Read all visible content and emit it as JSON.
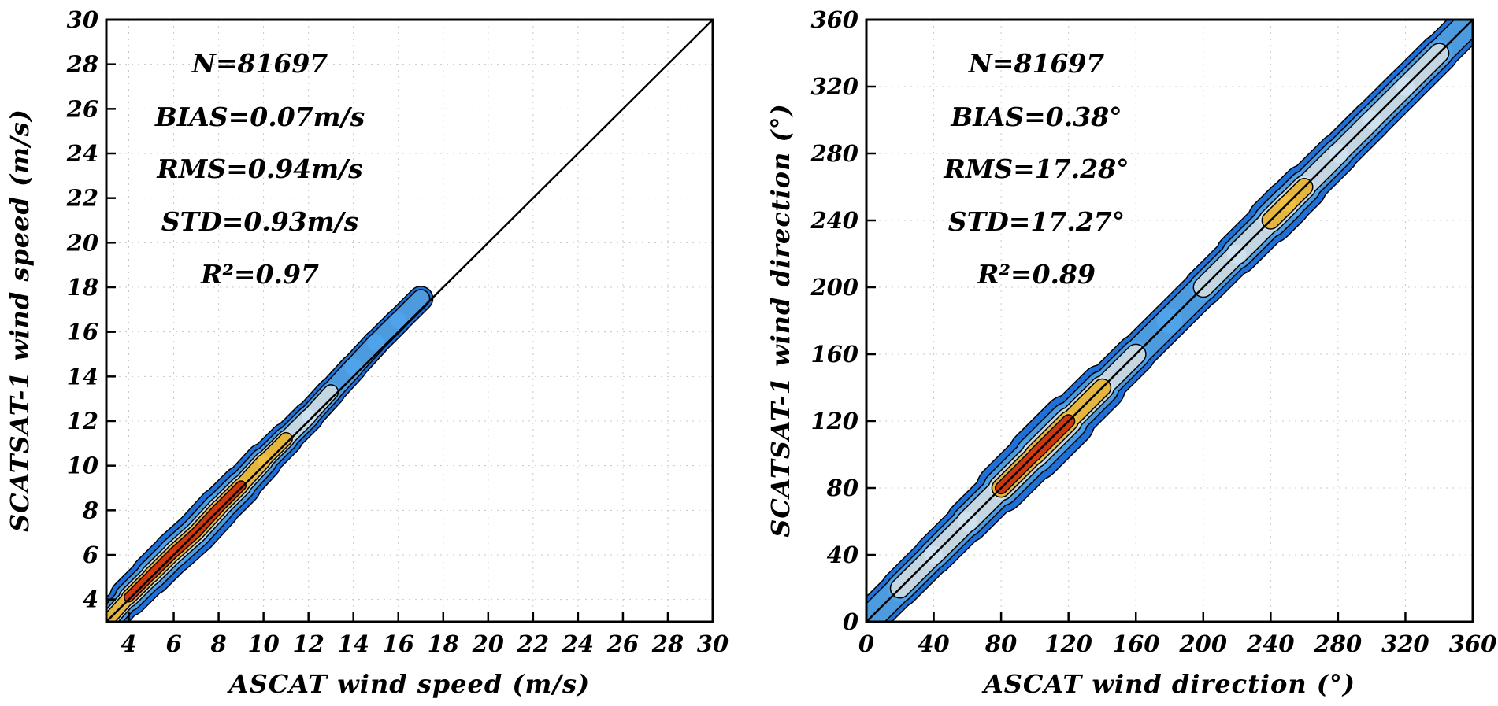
{
  "chart_data": [
    {
      "type": "scatter",
      "subtype": "density-contour",
      "title": "",
      "xlabel": "ASCAT wind speed (m/s)",
      "ylabel": "SCATSAT-1 wind speed (m/s)",
      "xlim": [
        3,
        30
      ],
      "ylim": [
        3,
        30
      ],
      "xticks": [
        4,
        6,
        8,
        10,
        12,
        14,
        16,
        18,
        20,
        22,
        24,
        26,
        28,
        30
      ],
      "yticks": [
        4,
        6,
        8,
        10,
        12,
        14,
        16,
        18,
        20,
        22,
        24,
        26,
        28,
        30
      ],
      "grid": true,
      "reference_line": "1:1",
      "stats": {
        "n": "N=81697",
        "bias": "BIAS=0.07m/s",
        "rms": "RMS=0.94m/s",
        "std": "STD=0.93m/s",
        "r2": "R²=0.97"
      },
      "density_ridge": {
        "x": [
          3.2,
          4,
          5,
          6,
          7,
          8,
          9,
          10,
          11,
          12,
          13,
          14,
          15,
          16,
          17
        ],
        "y": [
          3.2,
          4.1,
          5.1,
          6.1,
          7.0,
          8.1,
          9.1,
          10.2,
          11.2,
          12.2,
          13.3,
          14.4,
          15.5,
          16.5,
          17.5
        ],
        "density": [
          0.35,
          0.7,
          0.88,
          0.96,
          1.0,
          0.97,
          0.82,
          0.62,
          0.42,
          0.3,
          0.2,
          0.13,
          0.08,
          0.05,
          0.03
        ]
      },
      "spread": 0.9
    },
    {
      "type": "scatter",
      "subtype": "density-contour",
      "title": "",
      "xlabel": "ASCAT wind direction (°)",
      "ylabel": "SCATSAT-1 wind direction (°)",
      "xlim": [
        0,
        360
      ],
      "ylim": [
        0,
        360
      ],
      "xticks": [
        0,
        40,
        80,
        120,
        160,
        200,
        240,
        280,
        320,
        360
      ],
      "yticks": [
        0,
        40,
        80,
        120,
        160,
        200,
        240,
        280,
        320,
        360
      ],
      "grid": true,
      "reference_line": "1:1",
      "stats": {
        "n": "N=81697",
        "bias": "BIAS=0.38°",
        "rms": "RMS=17.28°",
        "std": "STD=17.27°",
        "r2": "R²=0.89"
      },
      "density_ridge": {
        "x": [
          3,
          20,
          40,
          60,
          80,
          100,
          120,
          140,
          160,
          180,
          200,
          220,
          240,
          250,
          260,
          280,
          300,
          320,
          340,
          357
        ],
        "y": [
          3,
          20,
          40,
          60,
          80,
          100,
          120,
          140,
          160,
          180,
          200,
          220,
          240,
          250,
          260,
          280,
          300,
          320,
          340,
          357
        ],
        "density": [
          0.15,
          0.25,
          0.3,
          0.38,
          0.55,
          0.95,
          0.85,
          0.4,
          0.25,
          0.22,
          0.25,
          0.35,
          0.55,
          0.7,
          0.45,
          0.35,
          0.3,
          0.3,
          0.28,
          0.15
        ]
      },
      "spread": 16
    }
  ],
  "colors": {
    "low": "#1f6fd9",
    "mid_low": "#4fa3ea",
    "mid": "#cfe2ee",
    "mid_high": "#f0c040",
    "high": "#d83a10",
    "contour": "#000000",
    "grid": "#c8c8c8"
  }
}
